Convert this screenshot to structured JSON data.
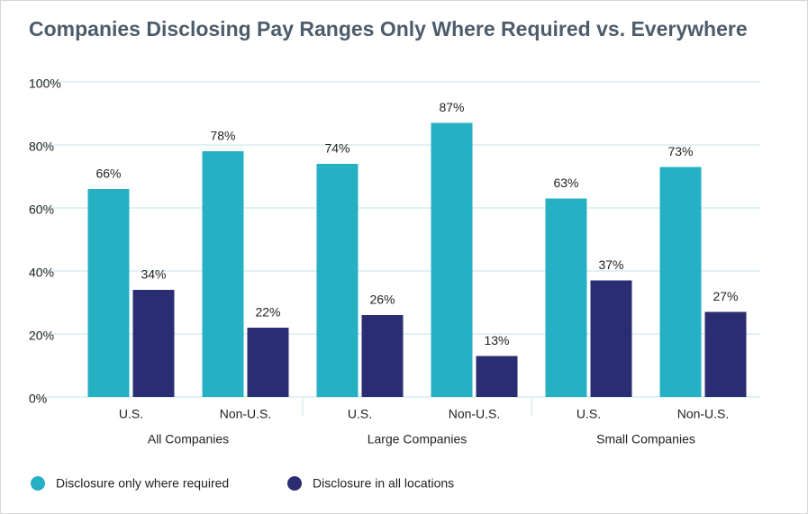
{
  "chart_data": {
    "type": "bar",
    "title": "Companies Disclosing Pay Ranges Only Where Required vs. Everywhere",
    "categories": [
      "U.S.",
      "Non-U.S.",
      "U.S.",
      "Non-U.S.",
      "U.S.",
      "Non-U.S."
    ],
    "groups": [
      "All Companies",
      "Large Companies",
      "Small Companies"
    ],
    "series": [
      {
        "name": "Disclosure only where required",
        "color": "#25b0c4",
        "values": [
          66,
          78,
          74,
          87,
          63,
          73
        ],
        "value_labels": [
          "66%",
          "78%",
          "74%",
          "87%",
          "63%",
          "73%"
        ]
      },
      {
        "name": "Disclosure in all locations",
        "color": "#2b2d72",
        "values": [
          34,
          22,
          26,
          13,
          37,
          27
        ],
        "value_labels": [
          "34%",
          "22%",
          "26%",
          "13%",
          "37%",
          "27%"
        ]
      }
    ],
    "ylim": [
      0,
      100
    ],
    "yticks": [
      {
        "value": 0,
        "label": "0%"
      },
      {
        "value": 20,
        "label": "20%"
      },
      {
        "value": 40,
        "label": "40%"
      },
      {
        "value": 60,
        "label": "60%"
      },
      {
        "value": 80,
        "label": "80%"
      },
      {
        "value": 100,
        "label": "100%"
      }
    ],
    "grid": true
  }
}
